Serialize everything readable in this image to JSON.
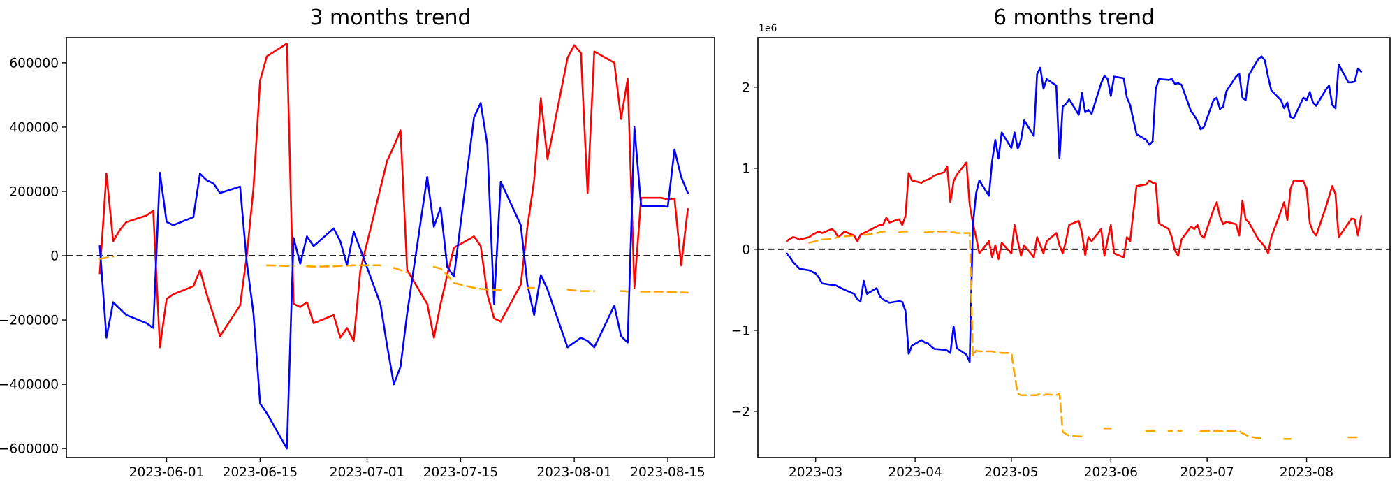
{
  "figure": {
    "background": "#ffffff"
  },
  "chart_data": [
    {
      "type": "line",
      "title": "3 months trend",
      "xlabel": "",
      "ylabel": "",
      "grid": false,
      "legend": "none",
      "zero_line": {
        "color": "#000000",
        "style": "dashed"
      },
      "xlim": [
        "2023-05-17",
        "2023-08-22"
      ],
      "ylim": [
        -628000,
        678000
      ],
      "x_ticks": [
        {
          "date": "2023-06-01",
          "label": "2023-06-01"
        },
        {
          "date": "2023-06-15",
          "label": "2023-06-15"
        },
        {
          "date": "2023-07-01",
          "label": "2023-07-01"
        },
        {
          "date": "2023-07-15",
          "label": "2023-07-15"
        },
        {
          "date": "2023-08-01",
          "label": "2023-08-01"
        },
        {
          "date": "2023-08-15",
          "label": "2023-08-15"
        }
      ],
      "y_ticks": [
        {
          "value": 600000,
          "label": "600000"
        },
        {
          "value": 400000,
          "label": "400000"
        },
        {
          "value": 200000,
          "label": "200000"
        },
        {
          "value": 0,
          "label": "0"
        },
        {
          "value": -200000,
          "label": "−200000"
        },
        {
          "value": -400000,
          "label": "−400000"
        },
        {
          "value": -600000,
          "label": "−600000"
        }
      ],
      "dates": [
        "2023-05-22",
        "2023-05-23",
        "2023-05-24",
        "2023-05-25",
        "2023-05-26",
        "2023-05-29",
        "2023-05-30",
        "2023-05-31",
        "2023-06-01",
        "2023-06-02",
        "2023-06-05",
        "2023-06-06",
        "2023-06-07",
        "2023-06-08",
        "2023-06-09",
        "2023-06-12",
        "2023-06-13",
        "2023-06-14",
        "2023-06-15",
        "2023-06-16",
        "2023-06-19",
        "2023-06-20",
        "2023-06-21",
        "2023-06-22",
        "2023-06-23",
        "2023-06-26",
        "2023-06-27",
        "2023-06-28",
        "2023-06-29",
        "2023-06-30",
        "2023-07-03",
        "2023-07-04",
        "2023-07-05",
        "2023-07-06",
        "2023-07-07",
        "2023-07-10",
        "2023-07-11",
        "2023-07-12",
        "2023-07-13",
        "2023-07-14",
        "2023-07-17",
        "2023-07-18",
        "2023-07-19",
        "2023-07-20",
        "2023-07-21",
        "2023-07-24",
        "2023-07-25",
        "2023-07-26",
        "2023-07-27",
        "2023-07-28",
        "2023-07-31",
        "2023-08-01",
        "2023-08-02",
        "2023-08-03",
        "2023-08-04",
        "2023-08-07",
        "2023-08-08",
        "2023-08-09",
        "2023-08-10",
        "2023-08-11",
        "2023-08-14",
        "2023-08-15",
        "2023-08-16",
        "2023-08-17",
        "2023-08-18"
      ],
      "series": [
        {
          "name": "red-line",
          "color": "#ff0000",
          "dash": "solid",
          "values": [
            -55000,
            255000,
            45000,
            80000,
            105000,
            125000,
            140000,
            -285000,
            -135000,
            -120000,
            -95000,
            -45000,
            -120000,
            -185000,
            -250000,
            -155000,
            0,
            210000,
            545000,
            620000,
            660000,
            -150000,
            -160000,
            -145000,
            -210000,
            -185000,
            -255000,
            -225000,
            -265000,
            -45000,
            210000,
            295000,
            340000,
            390000,
            -45000,
            -150000,
            -255000,
            -150000,
            -60000,
            25000,
            60000,
            30000,
            -120000,
            -195000,
            -205000,
            -90000,
            90000,
            235000,
            490000,
            300000,
            615000,
            655000,
            630000,
            195000,
            635000,
            600000,
            425000,
            550000,
            -100000,
            180000,
            180000,
            175000,
            178000,
            -30000,
            145000
          ]
        },
        {
          "name": "blue-line",
          "color": "#0000ff",
          "dash": "solid",
          "values": [
            30000,
            -255000,
            -145000,
            -165000,
            -185000,
            -210000,
            -225000,
            258000,
            105000,
            95000,
            120000,
            255000,
            235000,
            225000,
            195000,
            215000,
            -20000,
            -180000,
            -460000,
            -490000,
            -600000,
            55000,
            -25000,
            60000,
            30000,
            85000,
            45000,
            -30000,
            75000,
            20000,
            -150000,
            -280000,
            -400000,
            -345000,
            -180000,
            245000,
            90000,
            150000,
            -35000,
            -65000,
            430000,
            475000,
            345000,
            -150000,
            230000,
            95000,
            -90000,
            -185000,
            -60000,
            -105000,
            -285000,
            -270000,
            -255000,
            -265000,
            -285000,
            -155000,
            -250000,
            -270000,
            400000,
            155000,
            155000,
            152000,
            330000,
            245000,
            195000
          ]
        },
        {
          "name": "orange-dashed-line",
          "color": "#ffa500",
          "dash": "dashed",
          "values": [
            -10000,
            -6000,
            -3000,
            null,
            null,
            null,
            null,
            null,
            null,
            null,
            null,
            null,
            null,
            null,
            null,
            null,
            null,
            null,
            null,
            -30000,
            -32000,
            -33000,
            null,
            -33000,
            -34000,
            -33000,
            -32000,
            -31000,
            -30000,
            -30000,
            -30000,
            null,
            -38000,
            -45000,
            -52000,
            null,
            -35000,
            -40000,
            -60000,
            -85000,
            -100000,
            -103000,
            -105000,
            -106000,
            -107000,
            null,
            -100000,
            -100000,
            null,
            null,
            -105000,
            -108000,
            -110000,
            -110000,
            -110000,
            null,
            -110000,
            -111000,
            null,
            -112000,
            -112000,
            -113000,
            -113000,
            -114000,
            -115000
          ]
        }
      ]
    },
    {
      "type": "line",
      "title": "6 months trend",
      "xlabel": "",
      "ylabel": "",
      "offset_text": "1e6",
      "grid": false,
      "legend": "none",
      "zero_line": {
        "color": "#000000",
        "style": "dashed"
      },
      "xlim": [
        "2023-02-11",
        "2023-08-27"
      ],
      "ylim": [
        -2570000,
        2610000
      ],
      "x_ticks": [
        {
          "date": "2023-03-01",
          "label": "2023-03"
        },
        {
          "date": "2023-04-01",
          "label": "2023-04"
        },
        {
          "date": "2023-05-01",
          "label": "2023-05"
        },
        {
          "date": "2023-06-01",
          "label": "2023-06"
        },
        {
          "date": "2023-07-01",
          "label": "2023-07"
        },
        {
          "date": "2023-08-01",
          "label": "2023-08"
        }
      ],
      "y_ticks": [
        {
          "value": 2000000,
          "label": "2"
        },
        {
          "value": 1000000,
          "label": "1"
        },
        {
          "value": 0,
          "label": "0"
        },
        {
          "value": -1000000,
          "label": "−1"
        },
        {
          "value": -2000000,
          "label": "−2"
        }
      ],
      "dates": [
        "2023-02-20",
        "2023-02-21",
        "2023-02-22",
        "2023-02-23",
        "2023-02-24",
        "2023-02-27",
        "2023-02-28",
        "2023-03-01",
        "2023-03-02",
        "2023-03-03",
        "2023-03-06",
        "2023-03-07",
        "2023-03-08",
        "2023-03-09",
        "2023-03-10",
        "2023-03-13",
        "2023-03-14",
        "2023-03-15",
        "2023-03-16",
        "2023-03-17",
        "2023-03-20",
        "2023-03-21",
        "2023-03-22",
        "2023-03-23",
        "2023-03-24",
        "2023-03-27",
        "2023-03-28",
        "2023-03-29",
        "2023-03-30",
        "2023-03-31",
        "2023-04-03",
        "2023-04-04",
        "2023-04-05",
        "2023-04-06",
        "2023-04-07",
        "2023-04-10",
        "2023-04-11",
        "2023-04-12",
        "2023-04-13",
        "2023-04-14",
        "2023-04-17",
        "2023-04-18",
        "2023-04-19",
        "2023-04-20",
        "2023-04-21",
        "2023-04-24",
        "2023-04-25",
        "2023-04-26",
        "2023-04-27",
        "2023-04-28",
        "2023-05-01",
        "2023-05-02",
        "2023-05-03",
        "2023-05-04",
        "2023-05-05",
        "2023-05-08",
        "2023-05-09",
        "2023-05-10",
        "2023-05-11",
        "2023-05-12",
        "2023-05-15",
        "2023-05-16",
        "2023-05-17",
        "2023-05-18",
        "2023-05-19",
        "2023-05-22",
        "2023-05-23",
        "2023-05-24",
        "2023-05-25",
        "2023-05-26",
        "2023-05-29",
        "2023-05-30",
        "2023-05-31",
        "2023-06-01",
        "2023-06-02",
        "2023-06-05",
        "2023-06-06",
        "2023-06-07",
        "2023-06-08",
        "2023-06-09",
        "2023-06-12",
        "2023-06-13",
        "2023-06-14",
        "2023-06-15",
        "2023-06-16",
        "2023-06-19",
        "2023-06-20",
        "2023-06-21",
        "2023-06-22",
        "2023-06-23",
        "2023-06-26",
        "2023-06-27",
        "2023-06-28",
        "2023-06-29",
        "2023-06-30",
        "2023-07-03",
        "2023-07-04",
        "2023-07-05",
        "2023-07-06",
        "2023-07-07",
        "2023-07-10",
        "2023-07-11",
        "2023-07-12",
        "2023-07-13",
        "2023-07-14",
        "2023-07-17",
        "2023-07-18",
        "2023-07-19",
        "2023-07-20",
        "2023-07-21",
        "2023-07-24",
        "2023-07-25",
        "2023-07-26",
        "2023-07-27",
        "2023-07-28",
        "2023-07-31",
        "2023-08-01",
        "2023-08-02",
        "2023-08-03",
        "2023-08-04",
        "2023-08-07",
        "2023-08-08",
        "2023-08-09",
        "2023-08-10",
        "2023-08-11",
        "2023-08-14",
        "2023-08-15",
        "2023-08-16",
        "2023-08-17",
        "2023-08-18"
      ],
      "series": [
        {
          "name": "red-line",
          "color": "#ff0000",
          "dash": "solid",
          "values": [
            100000,
            130000,
            150000,
            140000,
            120000,
            150000,
            180000,
            200000,
            220000,
            200000,
            250000,
            220000,
            150000,
            180000,
            220000,
            170000,
            100000,
            180000,
            200000,
            220000,
            280000,
            300000,
            300000,
            390000,
            330000,
            370000,
            300000,
            410000,
            940000,
            850000,
            820000,
            850000,
            860000,
            880000,
            910000,
            950000,
            1020000,
            580000,
            840000,
            920000,
            1070000,
            550000,
            320000,
            150000,
            -50000,
            100000,
            -100000,
            50000,
            -120000,
            80000,
            -50000,
            300000,
            100000,
            -80000,
            50000,
            -100000,
            150000,
            50000,
            -50000,
            100000,
            200000,
            50000,
            -50000,
            100000,
            300000,
            350000,
            200000,
            -70000,
            150000,
            100000,
            250000,
            -80000,
            120000,
            300000,
            -50000,
            -100000,
            150000,
            100000,
            450000,
            780000,
            800000,
            850000,
            820000,
            810000,
            320000,
            250000,
            150000,
            -20000,
            -80000,
            120000,
            280000,
            250000,
            300000,
            180000,
            140000,
            490000,
            580000,
            400000,
            310000,
            340000,
            310000,
            170000,
            600000,
            370000,
            330000,
            120000,
            80000,
            30000,
            -50000,
            150000,
            470000,
            580000,
            360000,
            750000,
            850000,
            840000,
            750000,
            320000,
            220000,
            170000,
            520000,
            650000,
            780000,
            680000,
            150000,
            320000,
            380000,
            370000,
            170000,
            410000
          ]
        },
        {
          "name": "blue-line",
          "color": "#0000ff",
          "dash": "solid",
          "values": [
            -50000,
            -100000,
            -160000,
            -200000,
            -240000,
            -260000,
            -280000,
            -300000,
            -350000,
            -420000,
            -440000,
            -440000,
            -460000,
            -480000,
            -500000,
            -550000,
            -620000,
            -640000,
            -390000,
            -550000,
            -480000,
            -580000,
            -620000,
            -640000,
            -660000,
            -640000,
            -650000,
            -760000,
            -1290000,
            -1190000,
            -1120000,
            -1150000,
            -1160000,
            -1200000,
            -1230000,
            -1240000,
            -1250000,
            -1280000,
            -950000,
            -1220000,
            -1300000,
            -1390000,
            300000,
            690000,
            850000,
            660000,
            1090000,
            1350000,
            1120000,
            1440000,
            1250000,
            1440000,
            1240000,
            1350000,
            1590000,
            1400000,
            2160000,
            2240000,
            1980000,
            2100000,
            2020000,
            1120000,
            1760000,
            1790000,
            1850000,
            1660000,
            1930000,
            1690000,
            1720000,
            1670000,
            2050000,
            2140000,
            2100000,
            1890000,
            2130000,
            2110000,
            1870000,
            1780000,
            1600000,
            1420000,
            1350000,
            1290000,
            1330000,
            1980000,
            2100000,
            2090000,
            2100000,
            2040000,
            2050000,
            2030000,
            1700000,
            1650000,
            1580000,
            1480000,
            1510000,
            1840000,
            1870000,
            1730000,
            1760000,
            1950000,
            2130000,
            2170000,
            1870000,
            1840000,
            2150000,
            2350000,
            2380000,
            2330000,
            2130000,
            1960000,
            1840000,
            1740000,
            1810000,
            1630000,
            1620000,
            1870000,
            1840000,
            1940000,
            1810000,
            1770000,
            1970000,
            2020000,
            1780000,
            1740000,
            2280000,
            2060000,
            2060000,
            2070000,
            2230000,
            2190000
          ]
        },
        {
          "name": "orange-dashed-line",
          "color": "#ffa500",
          "dash": "dashed",
          "values": [
            null,
            null,
            null,
            null,
            null,
            80000,
            90000,
            100000,
            110000,
            120000,
            130000,
            140000,
            150000,
            null,
            160000,
            170000,
            170000,
            null,
            180000,
            180000,
            200000,
            210000,
            220000,
            220000,
            null,
            210000,
            220000,
            220000,
            220000,
            220000,
            null,
            210000,
            210000,
            220000,
            220000,
            220000,
            220000,
            210000,
            210000,
            200000,
            200000,
            200000,
            -1320000,
            -1250000,
            -1260000,
            -1260000,
            -1260000,
            -1270000,
            -1270000,
            -1280000,
            -1280000,
            -1550000,
            -1780000,
            -1800000,
            -1800000,
            -1800000,
            -1800000,
            -1780000,
            -1800000,
            -1790000,
            -1800000,
            -1780000,
            -2250000,
            -2280000,
            -2300000,
            -2310000,
            -2310000,
            -2300000,
            null,
            -2300000,
            null,
            -2210000,
            -2210000,
            -2210000,
            null,
            null,
            null,
            null,
            null,
            null,
            -2240000,
            -2240000,
            -2240000,
            -2240000,
            null,
            -2240000,
            -2240000,
            null,
            -2240000,
            -2240000,
            null,
            null,
            null,
            -2240000,
            -2240000,
            -2240000,
            -2240000,
            -2240000,
            -2240000,
            -2240000,
            -2240000,
            -2240000,
            -2270000,
            -2290000,
            -2310000,
            -2330000,
            -2330000,
            -2330000,
            null,
            null,
            null,
            -2340000,
            -2340000,
            -2340000,
            null,
            null,
            null,
            null,
            null,
            null,
            null,
            null,
            null,
            null,
            null,
            -2320000,
            -2320000,
            -2320000,
            -2320000,
            -2330000
          ]
        }
      ]
    }
  ]
}
